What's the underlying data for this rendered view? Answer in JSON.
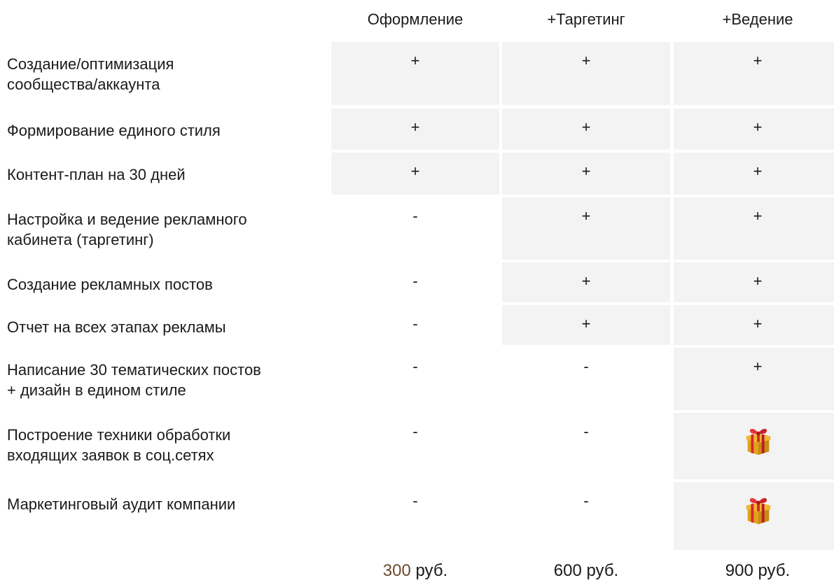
{
  "columns": [
    "Оформление",
    "+Таргетинг",
    "+Ведение"
  ],
  "rows": [
    {
      "label_lines": [
        "Создание/оптимизация",
        "сообщества/аккаунта"
      ],
      "values": [
        "+",
        "+",
        "+"
      ]
    },
    {
      "label_lines": [
        "Формирование единого стиля"
      ],
      "values": [
        "+",
        "+",
        "+"
      ]
    },
    {
      "label_lines": [
        "Контент-план на 30 дней"
      ],
      "values": [
        "+",
        "+",
        "+"
      ]
    },
    {
      "label_lines": [
        "Настройка и ведение рекламного",
        "кабинета (таргетинг)"
      ],
      "values": [
        "-",
        "+",
        "+"
      ]
    },
    {
      "label_lines": [
        "Создание рекламных постов"
      ],
      "values": [
        "-",
        "+",
        "+"
      ]
    },
    {
      "label_lines": [
        "Отчет на всех этапах рекламы"
      ],
      "values": [
        "-",
        "+",
        "+"
      ]
    },
    {
      "label_lines": [
        "Написание 30 тематических постов",
        "+ дизайн в едином стиле"
      ],
      "values": [
        "-",
        "-",
        "+"
      ]
    },
    {
      "label_lines": [
        "Построение техники обработки",
        "входящих заявок в соц.сетях"
      ],
      "values": [
        "-",
        "-",
        "gift-icon"
      ]
    },
    {
      "label_lines": [
        "Маркетинговый аудит компании"
      ],
      "values": [
        "-",
        "-",
        "gift-icon"
      ]
    }
  ],
  "prices": [
    {
      "number": "300",
      "unit": " руб."
    },
    {
      "number": "600",
      "unit": " руб."
    },
    {
      "number": "900",
      "unit": " руб."
    }
  ],
  "colors": {
    "shade": "#f3f3f3",
    "text": "#1a1a1a",
    "accent_number": "#6d4a2e",
    "gift_box": "#e0a21a",
    "gift_ribbon": "#d6282c"
  }
}
